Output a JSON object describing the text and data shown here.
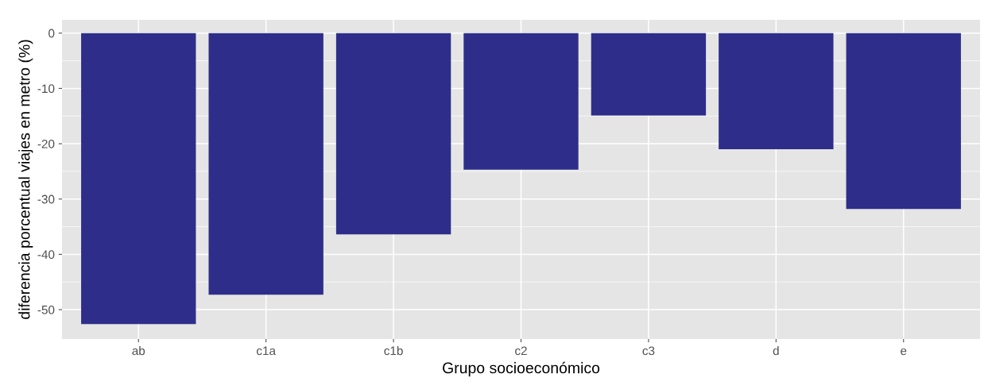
{
  "chart_data": {
    "type": "bar",
    "xlabel": "Grupo socioeconómico",
    "ylabel": "diferencia porcentual viajes en metro (%)",
    "categories": [
      "ab",
      "c1a",
      "c1b",
      "c2",
      "c3",
      "d",
      "e"
    ],
    "values": [
      -52.6,
      -47.3,
      -36.4,
      -24.7,
      -14.9,
      -21.0,
      -31.8
    ],
    "color": "#2e2e8a",
    "ylim": [
      -55.3,
      2.4
    ],
    "yticks": [
      -50,
      -40,
      -30,
      -20,
      -10,
      0
    ],
    "grid": true
  }
}
